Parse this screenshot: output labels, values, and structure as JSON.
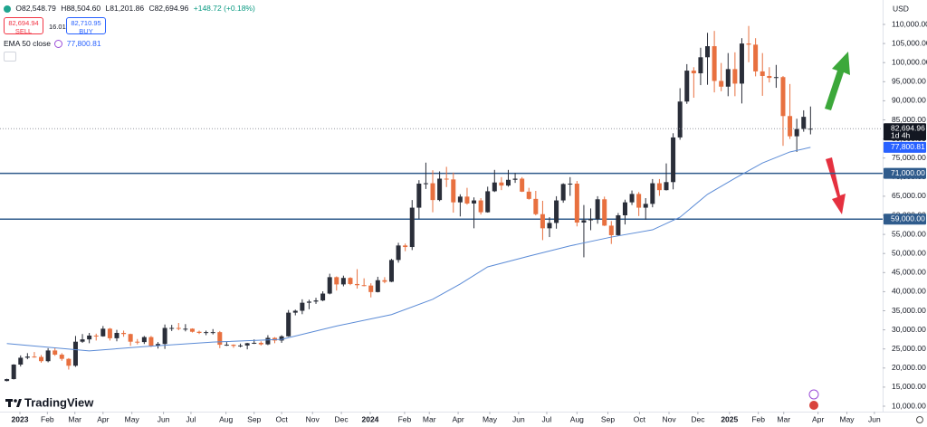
{
  "chart_data": {
    "type": "candlestick",
    "header": {
      "open": "O82,548.79",
      "high": "H88,504.60",
      "low": "L81,201.86",
      "close": "C82,694.96",
      "change": "+148.72 (+0.18%)",
      "sell_price": "82,694.94",
      "sell": "SELL",
      "spread": "16.01",
      "buy_price": "82,710.95",
      "buy": "BUY"
    },
    "currency": "USD",
    "logo": "TradingView",
    "candle_colors": {
      "up": "#2a2e39",
      "down": "#e8703f"
    },
    "candles": [
      [
        16600,
        17200,
        16500,
        17100
      ],
      [
        17100,
        21000,
        17000,
        20900
      ],
      [
        20900,
        23300,
        20400,
        22700
      ],
      [
        22700,
        23900,
        22300,
        23000
      ],
      [
        23000,
        24200,
        22700,
        22900
      ],
      [
        22900,
        23400,
        21400,
        21800
      ],
      [
        21800,
        25200,
        21500,
        24600
      ],
      [
        24600,
        25200,
        23200,
        23500
      ],
      [
        23500,
        23900,
        21900,
        22400
      ],
      [
        22400,
        22600,
        19600,
        20600
      ],
      [
        20600,
        28400,
        20300,
        26900
      ],
      [
        26900,
        28900,
        26600,
        27500
      ],
      [
        27500,
        29200,
        26500,
        28500
      ],
      [
        28500,
        29000,
        27200,
        28300
      ],
      [
        28300,
        31000,
        28200,
        30300
      ],
      [
        30300,
        30500,
        27200,
        27800
      ],
      [
        27800,
        30000,
        27000,
        29200
      ],
      [
        29200,
        29800,
        28200,
        28900
      ],
      [
        28900,
        29000,
        25800,
        26900
      ],
      [
        26900,
        27600,
        26200,
        26800
      ],
      [
        26800,
        28400,
        26300,
        28100
      ],
      [
        28100,
        28400,
        25500,
        25800
      ],
      [
        25800,
        26800,
        25100,
        26300
      ],
      [
        26300,
        31400,
        25000,
        30500
      ],
      [
        30500,
        31300,
        29700,
        30500
      ],
      [
        30500,
        31800,
        29900,
        30300
      ],
      [
        30300,
        31500,
        29600,
        30300
      ],
      [
        30300,
        30400,
        29300,
        29500
      ],
      [
        29500,
        29800,
        28900,
        29200
      ],
      [
        29200,
        29800,
        28600,
        29400
      ],
      [
        29400,
        30200,
        28800,
        29400
      ],
      [
        29400,
        29700,
        25200,
        26100
      ],
      [
        26100,
        26800,
        25800,
        26100
      ],
      [
        26100,
        26200,
        25300,
        25800
      ],
      [
        25800,
        26400,
        25400,
        25900
      ],
      [
        25900,
        26600,
        24900,
        26500
      ],
      [
        26500,
        27500,
        26300,
        26600
      ],
      [
        26600,
        27000,
        25900,
        26200
      ],
      [
        26200,
        28600,
        26000,
        27900
      ],
      [
        27900,
        28100,
        26500,
        27200
      ],
      [
        27200,
        28600,
        26600,
        28300
      ],
      [
        28300,
        35200,
        28200,
        34500
      ],
      [
        34500,
        35300,
        33800,
        35000
      ],
      [
        35000,
        38000,
        34100,
        37100
      ],
      [
        37100,
        37900,
        35400,
        37400
      ],
      [
        37400,
        38400,
        36800,
        37700
      ],
      [
        37700,
        40100,
        37500,
        39500
      ],
      [
        39500,
        44700,
        39300,
        43800
      ],
      [
        43800,
        44000,
        40300,
        41900
      ],
      [
        41900,
        44200,
        41400,
        43600
      ],
      [
        43600,
        43800,
        41700,
        42000
      ],
      [
        42000,
        45900,
        40800,
        41700
      ],
      [
        41700,
        43500,
        41400,
        41600
      ],
      [
        41600,
        42200,
        38500,
        39900
      ],
      [
        39900,
        43900,
        39800,
        43000
      ],
      [
        43000,
        43800,
        42200,
        42600
      ],
      [
        42600,
        48600,
        42500,
        48300
      ],
      [
        48300,
        52800,
        47600,
        52100
      ],
      [
        52100,
        52600,
        50600,
        51700
      ],
      [
        51700,
        64000,
        50900,
        62000
      ],
      [
        62000,
        69200,
        59100,
        68300
      ],
      [
        68300,
        73800,
        66900,
        68400
      ],
      [
        68400,
        71800,
        60800,
        64000
      ],
      [
        64000,
        71500,
        63700,
        69600
      ],
      [
        69600,
        72700,
        67400,
        69400
      ],
      [
        69400,
        71200,
        60700,
        63400
      ],
      [
        63400,
        65500,
        59700,
        64900
      ],
      [
        64900,
        67200,
        62800,
        63100
      ],
      [
        63100,
        64700,
        56600,
        63900
      ],
      [
        63900,
        64500,
        60200,
        60800
      ],
      [
        60800,
        67500,
        60700,
        66300
      ],
      [
        66300,
        71900,
        66100,
        68600
      ],
      [
        68600,
        70000,
        66600,
        67800
      ],
      [
        67800,
        71900,
        67500,
        69300
      ],
      [
        69300,
        71100,
        68500,
        69600
      ],
      [
        69600,
        70000,
        66100,
        66200
      ],
      [
        66200,
        67200,
        64100,
        64300
      ],
      [
        64300,
        66400,
        60000,
        60300
      ],
      [
        60300,
        63800,
        53500,
        56600
      ],
      [
        56600,
        59500,
        54300,
        58000
      ],
      [
        58000,
        65000,
        56500,
        63900
      ],
      [
        63900,
        68400,
        63300,
        68200
      ],
      [
        68200,
        70000,
        65100,
        68300
      ],
      [
        68300,
        69000,
        57100,
        58100
      ],
      [
        58100,
        62700,
        49000,
        58700
      ],
      [
        58700,
        61800,
        56100,
        59000
      ],
      [
        59000,
        65000,
        57800,
        64200
      ],
      [
        64200,
        64900,
        57200,
        57300
      ],
      [
        57300,
        58500,
        52500,
        54800
      ],
      [
        54800,
        60600,
        54600,
        60000
      ],
      [
        60000,
        64100,
        57600,
        63400
      ],
      [
        63400,
        66500,
        62700,
        65600
      ],
      [
        65600,
        66100,
        59800,
        62000
      ],
      [
        62000,
        64500,
        58900,
        63000
      ],
      [
        63000,
        69500,
        62100,
        68400
      ],
      [
        68400,
        69500,
        65100,
        66600
      ],
      [
        66600,
        73600,
        66500,
        68700
      ],
      [
        68700,
        81500,
        66800,
        80400
      ],
      [
        80400,
        93300,
        79800,
        89800
      ],
      [
        89800,
        99600,
        89200,
        97900
      ],
      [
        97900,
        98800,
        90800,
        97200
      ],
      [
        97200,
        103900,
        94100,
        101400
      ],
      [
        101400,
        107800,
        94200,
        104300
      ],
      [
        104300,
        108300,
        92200,
        95200
      ],
      [
        95200,
        99900,
        92500,
        93700
      ],
      [
        93700,
        102500,
        91200,
        98300
      ],
      [
        98300,
        102700,
        91200,
        94500
      ],
      [
        94500,
        106400,
        89300,
        105000
      ],
      [
        105000,
        109600,
        100100,
        104700
      ],
      [
        104700,
        106400,
        96400,
        97700
      ],
      [
        97700,
        102500,
        91300,
        96500
      ],
      [
        96500,
        98800,
        94800,
        96000
      ],
      [
        96000,
        99400,
        93400,
        96200
      ],
      [
        96200,
        96500,
        78200,
        86000
      ],
      [
        86000,
        94400,
        80000,
        80700
      ],
      [
        80700,
        85300,
        76600,
        82600
      ],
      [
        82600,
        87500,
        81900,
        85800
      ],
      [
        82548.79,
        88504.6,
        81201.86,
        82694.96
      ]
    ],
    "ema": {
      "name": "EMA 50 close",
      "color": "#5b8bd6",
      "value_label": "77,800.81",
      "x": [
        0,
        12,
        20,
        30,
        40,
        48,
        56,
        62,
        66,
        70,
        76,
        82,
        88,
        94,
        98,
        102,
        106,
        110,
        114,
        117
      ],
      "values": [
        26400,
        24500,
        25600,
        26800,
        27500,
        31000,
        34000,
        38000,
        42000,
        46500,
        49300,
        52000,
        54300,
        56200,
        59500,
        65500,
        69700,
        73700,
        76600,
        77800.81
      ]
    },
    "levels": [
      {
        "value": 71000,
        "label": "71,000.00"
      },
      {
        "value": 59000,
        "label": "59,000.00"
      }
    ],
    "level_color": "#2f5b8c",
    "last_price": {
      "value": 82694.96,
      "label": "82,694.96"
    },
    "countdown": "1d 4h",
    "grid": false,
    "xlim": [
      -1,
      127.5
    ],
    "ylim": [
      8580,
      116400
    ],
    "yticks": [
      {
        "value": 10000,
        "label": "10,000.00"
      },
      {
        "value": 15000,
        "label": "15,000.00"
      },
      {
        "value": 20000,
        "label": "20,000.00"
      },
      {
        "value": 25000,
        "label": "25,000.00"
      },
      {
        "value": 30000,
        "label": "30,000.00"
      },
      {
        "value": 35000,
        "label": "35,000.00"
      },
      {
        "value": 40000,
        "label": "40,000.00"
      },
      {
        "value": 45000,
        "label": "45,000.00"
      },
      {
        "value": 50000,
        "label": "50,000.00"
      },
      {
        "value": 55000,
        "label": "55,000.00"
      },
      {
        "value": 60000,
        "label": "60,000.00"
      },
      {
        "value": 65000,
        "label": "65,000.00"
      },
      {
        "value": 70000,
        "label": "70,000.00"
      },
      {
        "value": 75000,
        "label": "75,000.00"
      },
      {
        "value": 80000,
        "label": "80,000.00"
      },
      {
        "value": 85000,
        "label": "85,000.00"
      },
      {
        "value": 90000,
        "label": "90,000.00"
      },
      {
        "value": 95000,
        "label": "95,000.00"
      },
      {
        "value": 100000,
        "label": "100,000.00"
      },
      {
        "value": 105000,
        "label": "105,000.00"
      },
      {
        "value": 110000,
        "label": "110,000.00"
      }
    ],
    "xticks": [
      {
        "value": 1.9,
        "label": "2023"
      },
      {
        "value": 5.9,
        "label": "Feb"
      },
      {
        "value": 9.9,
        "label": "Mar"
      },
      {
        "value": 14,
        "label": "Apr"
      },
      {
        "value": 18.2,
        "label": "May"
      },
      {
        "value": 22.8,
        "label": "Jun"
      },
      {
        "value": 26.8,
        "label": "Jul"
      },
      {
        "value": 31.9,
        "label": "Aug"
      },
      {
        "value": 36,
        "label": "Sep"
      },
      {
        "value": 40,
        "label": "Oct"
      },
      {
        "value": 44.5,
        "label": "Nov"
      },
      {
        "value": 48.7,
        "label": "Dec"
      },
      {
        "value": 52.9,
        "label": "2024"
      },
      {
        "value": 57.9,
        "label": "Feb"
      },
      {
        "value": 61.5,
        "label": "Mar"
      },
      {
        "value": 65.7,
        "label": "Apr"
      },
      {
        "value": 70.3,
        "label": "May"
      },
      {
        "value": 74.5,
        "label": "Jun"
      },
      {
        "value": 78.6,
        "label": "Jul"
      },
      {
        "value": 83,
        "label": "Aug"
      },
      {
        "value": 87.5,
        "label": "Sep"
      },
      {
        "value": 92.1,
        "label": "Oct"
      },
      {
        "value": 96.4,
        "label": "Nov"
      },
      {
        "value": 100.6,
        "label": "Dec"
      },
      {
        "value": 105.2,
        "label": "2025"
      },
      {
        "value": 109.4,
        "label": "Feb"
      },
      {
        "value": 113.1,
        "label": "Mar"
      },
      {
        "value": 118.1,
        "label": "Apr"
      },
      {
        "value": 122.3,
        "label": "May"
      },
      {
        "value": 126.3,
        "label": "Jun"
      }
    ]
  }
}
